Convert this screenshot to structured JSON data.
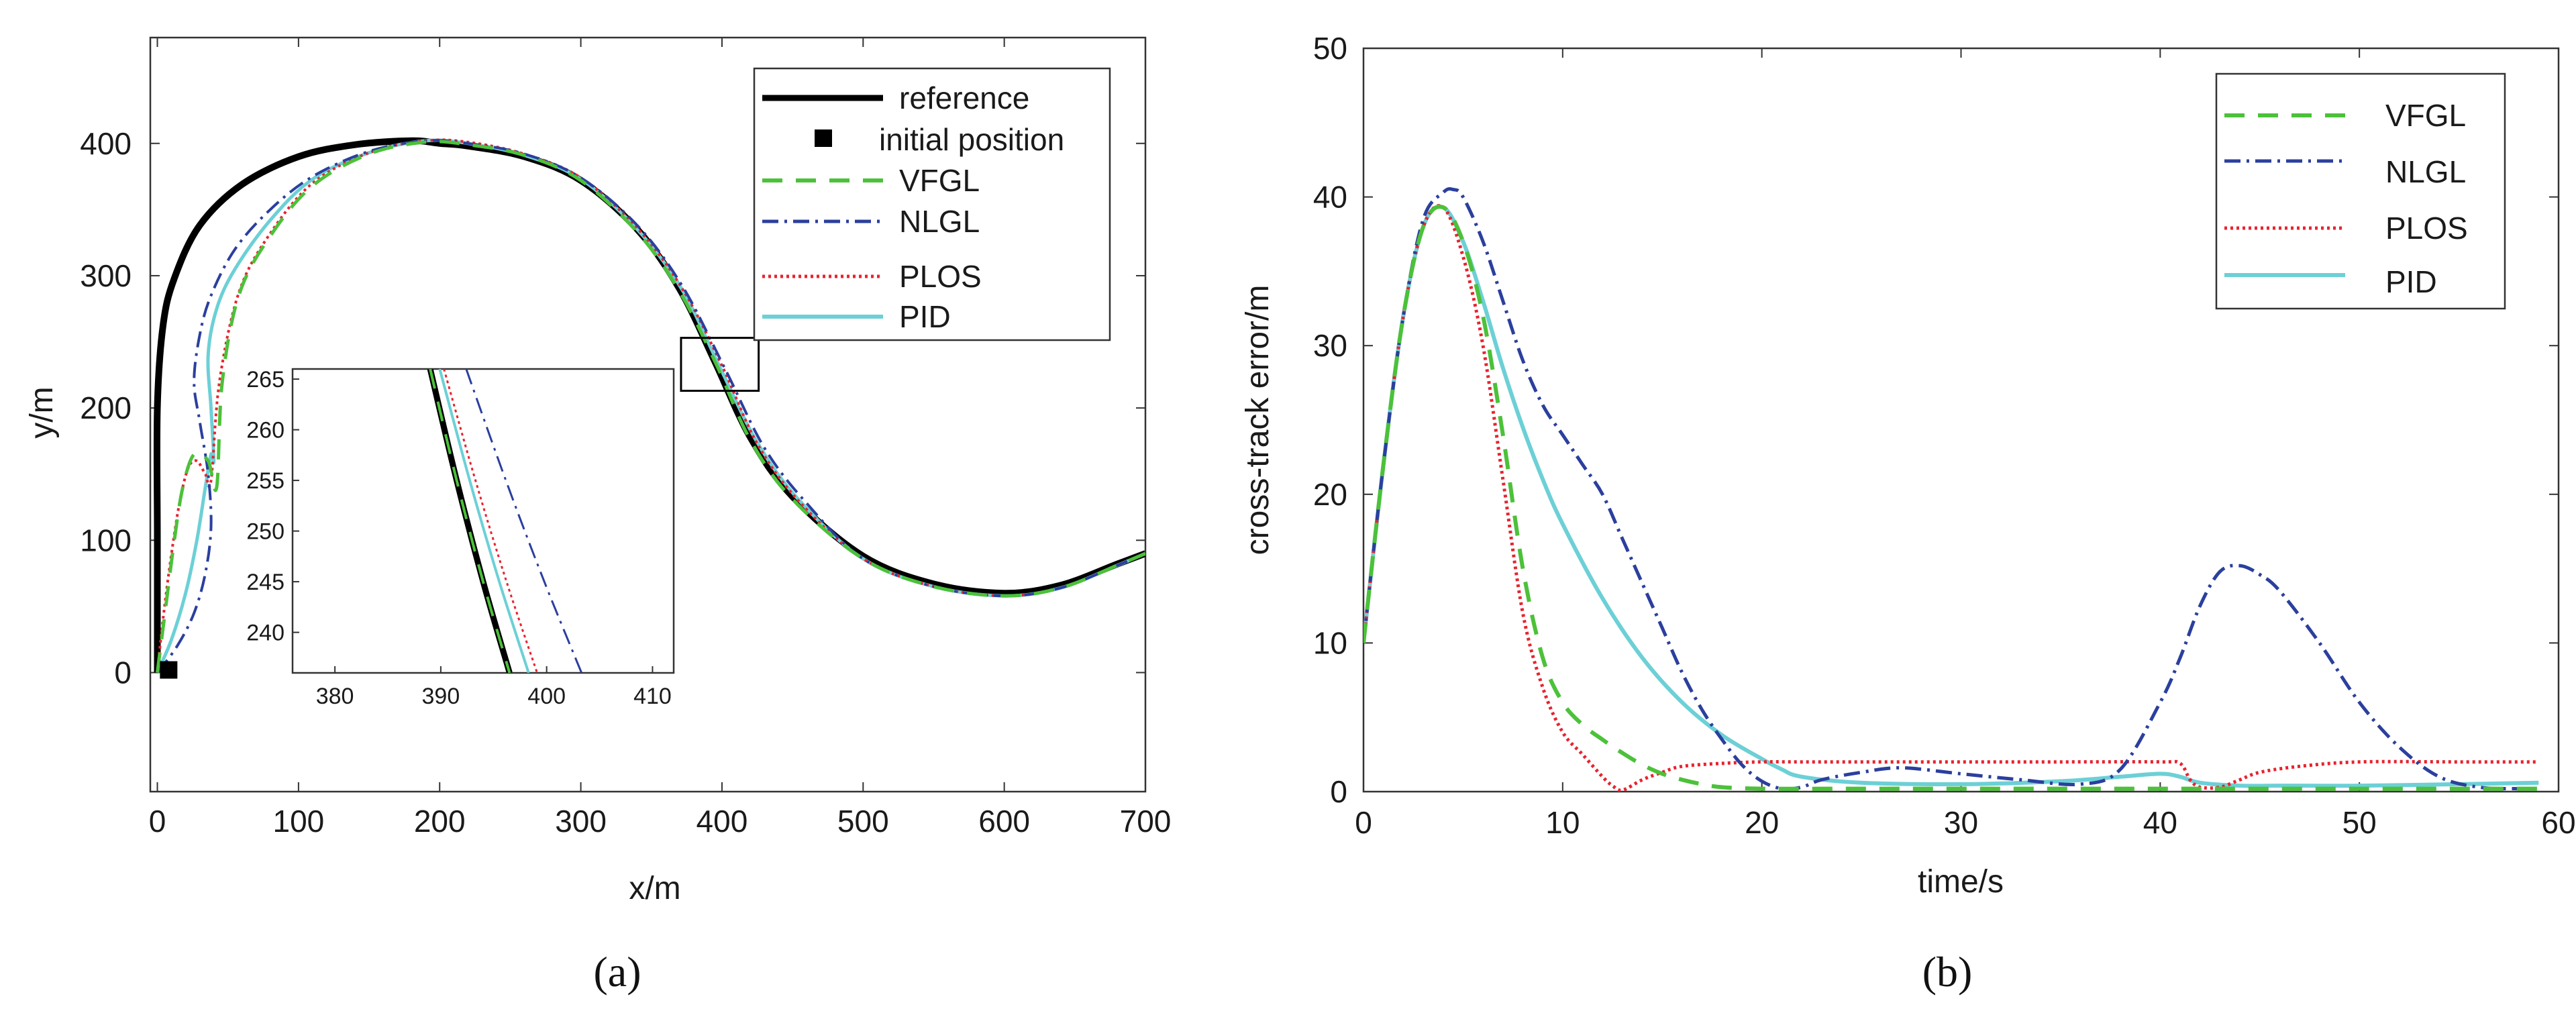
{
  "chart_data": [
    {
      "type": "line",
      "subplot_label": "(a)",
      "xlabel": "x/m",
      "ylabel": "y/m",
      "xlim": [
        -5,
        700
      ],
      "ylim": [
        -90,
        480
      ],
      "xticks": [
        0,
        100,
        200,
        300,
        400,
        500,
        600,
        700
      ],
      "yticks": [
        0,
        100,
        200,
        300,
        400
      ],
      "legend": {
        "position": "top-right",
        "entries": [
          "reference",
          "initial position",
          "VFGL",
          "NLGL",
          "PLOS",
          "PID"
        ]
      },
      "initial_position": {
        "x": 8,
        "y": 2
      },
      "zoom_region": {
        "xlim": [
          371,
          426
        ],
        "ylim": [
          213,
          253
        ]
      },
      "inset": {
        "xlim": [
          376,
          412
        ],
        "ylim": [
          236,
          266
        ],
        "xticks": [
          380,
          390,
          400,
          410
        ],
        "yticks": [
          240,
          245,
          250,
          255,
          260,
          265
        ]
      },
      "series": [
        {
          "name": "reference",
          "color": "#000000",
          "style": "solid",
          "x": [
            0,
            0,
            0,
            4,
            12,
            30,
            60,
            100,
            140,
            180,
            200,
            220,
            260,
            300,
            340,
            370,
            395,
            420,
            450,
            500,
            550,
            600,
            640,
            680,
            700
          ],
          "y": [
            0,
            100,
            200,
            262,
            298,
            338,
            369,
            390,
            399,
            402,
            400,
            398,
            390,
            372,
            335,
            290,
            235,
            178,
            133,
            88,
            67,
            60,
            66,
            82,
            90
          ]
        },
        {
          "name": "VFGL",
          "color": "#4cc13a",
          "style": "dashed",
          "x": [
            0,
            6,
            12,
            18,
            26,
            36,
            42,
            46,
            58,
            80,
            110,
            150,
            190,
            220,
            260,
            300,
            340,
            370,
            396,
            420,
            450,
            500,
            550,
            600,
            640,
            680,
            700
          ],
          "y": [
            0,
            50,
            100,
            140,
            165,
            160,
            140,
            220,
            286,
            330,
            368,
            392,
            401,
            399,
            391,
            372,
            333,
            288,
            233,
            176,
            131,
            86,
            65,
            58,
            64,
            81,
            90
          ]
        },
        {
          "name": "NLGL",
          "color": "#2b3f9d",
          "style": "dashdot",
          "x": [
            0,
            14,
            26,
            34,
            38,
            36,
            30,
            26,
            30,
            38,
            55,
            80,
            110,
            150,
            190,
            220,
            260,
            300,
            340,
            372,
            402,
            430,
            460,
            500,
            550,
            600,
            640,
            680,
            700
          ],
          "y": [
            0,
            20,
            45,
            75,
            110,
            150,
            190,
            220,
            255,
            285,
            320,
            350,
            375,
            394,
            402,
            400,
            392,
            374,
            338,
            292,
            230,
            170,
            128,
            86,
            65,
            58,
            64,
            81,
            90
          ]
        },
        {
          "name": "PLOS",
          "color": "#e8232f",
          "style": "dotted",
          "x": [
            0,
            4,
            10,
            16,
            22,
            28,
            34,
            38,
            44,
            58,
            80,
            110,
            150,
            190,
            220,
            260,
            300,
            340,
            372,
            400,
            425,
            455,
            500,
            550,
            600,
            640,
            680,
            700
          ],
          "y": [
            0,
            40,
            90,
            130,
            155,
            160,
            150,
            145,
            220,
            288,
            332,
            370,
            393,
            402,
            401,
            392,
            374,
            336,
            290,
            232,
            173,
            129,
            86,
            65,
            58,
            64,
            81,
            90
          ]
        },
        {
          "name": "PID",
          "color": "#6cd0d6",
          "style": "solid",
          "x": [
            0,
            10,
            20,
            28,
            34,
            38,
            40,
            38,
            36,
            42,
            55,
            80,
            110,
            150,
            190,
            220,
            260,
            300,
            340,
            372,
            398,
            425,
            455,
            500,
            550,
            600,
            640,
            680,
            700
          ],
          "y": [
            0,
            25,
            60,
            100,
            140,
            165,
            160,
            200,
            240,
            275,
            305,
            342,
            373,
            393,
            402,
            400,
            391,
            373,
            335,
            289,
            232,
            174,
            130,
            86,
            65,
            58,
            64,
            81,
            90
          ]
        }
      ]
    },
    {
      "type": "line",
      "subplot_label": "(b)",
      "xlabel": "time/s",
      "ylabel": "cross-track error/m",
      "xlim": [
        0,
        60
      ],
      "ylim": [
        0,
        50
      ],
      "xticks": [
        0,
        10,
        20,
        30,
        40,
        50,
        60
      ],
      "yticks": [
        0,
        10,
        20,
        30,
        40,
        50
      ],
      "legend": {
        "position": "top-right",
        "entries": [
          "VFGL",
          "NLGL",
          "PLOS",
          "PID"
        ]
      },
      "series": [
        {
          "name": "VFGL",
          "color": "#4cc13a",
          "style": "dashed",
          "x": [
            0,
            1,
            2,
            3,
            4,
            5,
            6,
            7,
            8,
            9,
            10,
            11,
            12,
            13,
            14,
            15,
            16,
            17,
            18,
            20,
            25,
            30,
            35,
            40,
            45,
            50,
            55,
            59
          ],
          "y": [
            10,
            22,
            32,
            38,
            39.3,
            37,
            32,
            24,
            15,
            9,
            6,
            4.5,
            3.5,
            2.6,
            1.8,
            1.2,
            0.8,
            0.5,
            0.3,
            0.2,
            0.2,
            0.2,
            0.2,
            0.2,
            0.2,
            0.2,
            0.2,
            0.2
          ]
        },
        {
          "name": "NLGL",
          "color": "#2b3f9d",
          "style": "dashdot",
          "x": [
            0,
            1,
            2,
            3,
            4,
            4.5,
            5,
            6,
            7,
            8,
            9,
            10,
            11,
            12,
            13,
            14,
            15,
            16,
            17,
            18,
            19,
            20,
            21,
            22,
            23,
            25,
            27,
            30,
            33,
            36,
            38,
            40,
            41,
            42,
            43,
            44,
            45,
            46,
            48,
            50,
            52,
            54,
            56,
            58,
            59
          ],
          "y": [
            10,
            22,
            32,
            38.5,
            40.3,
            40.5,
            40,
            37,
            33,
            29,
            26,
            24,
            22,
            20,
            17,
            14,
            11,
            8,
            5.5,
            3.5,
            1.8,
            0.7,
            0.2,
            0.3,
            0.8,
            1.3,
            1.6,
            1.2,
            0.8,
            0.5,
            1.5,
            6,
            9,
            12.5,
            14.8,
            15.2,
            14.6,
            13.5,
            10,
            6,
            3,
            1,
            0.3,
            0.2,
            0.2
          ]
        },
        {
          "name": "PLOS",
          "color": "#e8232f",
          "style": "dotted",
          "x": [
            0,
            1,
            2,
            3,
            4,
            5,
            6,
            7,
            8,
            9,
            10,
            11,
            12,
            12.5,
            13,
            14,
            15,
            16,
            18,
            20,
            22,
            25,
            30,
            35,
            40,
            41,
            41.5,
            42,
            43,
            44,
            45,
            47,
            50,
            55,
            59
          ],
          "y": [
            10,
            22,
            32,
            38,
            39.3,
            36,
            30,
            21,
            12,
            7,
            4,
            2.5,
            1,
            0.4,
            0.1,
            0.8,
            1.3,
            1.7,
            1.9,
            2,
            2,
            2,
            2,
            2,
            2,
            1.9,
            0.8,
            0.3,
            0.3,
            0.8,
            1.3,
            1.7,
            2,
            2,
            2
          ]
        },
        {
          "name": "PID",
          "color": "#6cd0d6",
          "style": "solid",
          "x": [
            0,
            1,
            2,
            3,
            4,
            5,
            6,
            7,
            8,
            9,
            10,
            12,
            14,
            16,
            18,
            20,
            21,
            22,
            25,
            30,
            35,
            38,
            40,
            41,
            42,
            44,
            46,
            50,
            55,
            59
          ],
          "y": [
            10,
            22,
            32,
            38,
            39.3,
            37,
            33,
            28.5,
            24.5,
            21,
            18,
            13,
            9,
            6,
            3.8,
            2.2,
            1.5,
            1,
            0.6,
            0.5,
            0.7,
            1,
            1.2,
            1,
            0.6,
            0.4,
            0.4,
            0.4,
            0.5,
            0.6
          ]
        }
      ]
    }
  ]
}
